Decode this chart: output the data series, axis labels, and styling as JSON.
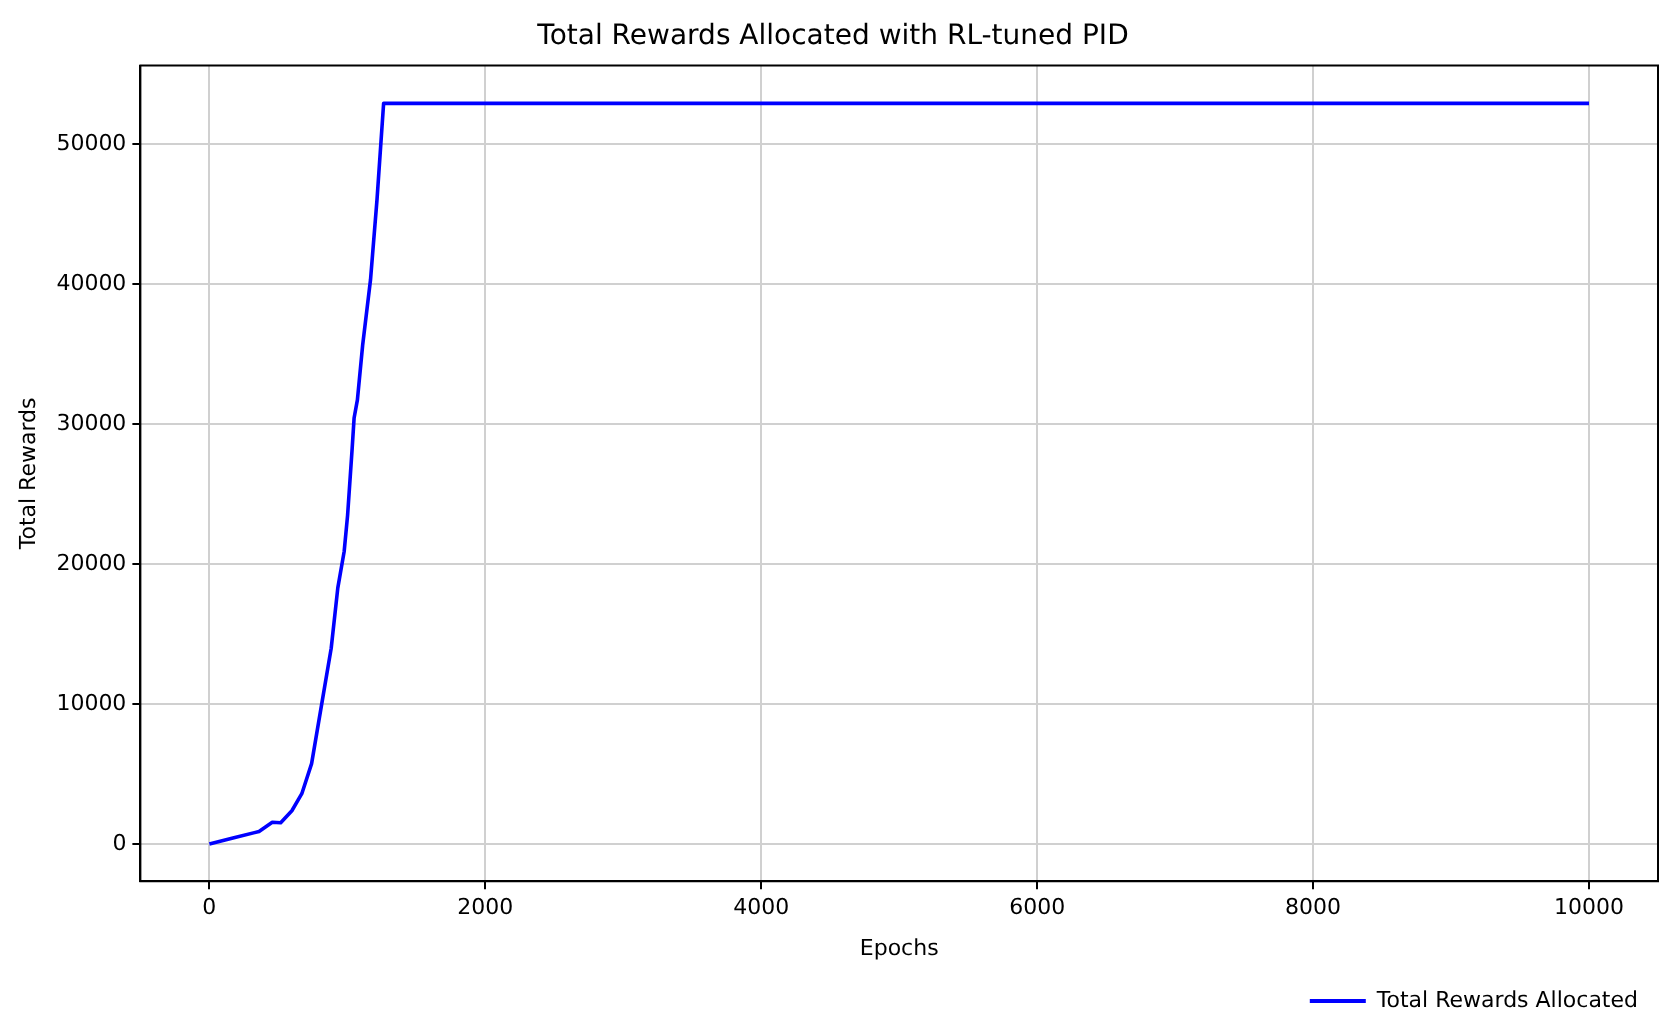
{
  "chart_data": {
    "type": "line",
    "title": "Total Rewards Allocated with RL-tuned PID",
    "xlabel": "Epochs",
    "ylabel": "Total Rewards",
    "series": [
      {
        "name": "Total Rewards Allocated",
        "color": "#0000ff",
        "x": [
          0,
          171,
          360,
          456,
          517,
          598,
          670,
          741,
          812,
          883,
          931,
          977,
          1002,
          1035,
          1049,
          1073,
          1111,
          1168,
          1215,
          1263,
          10000
        ],
        "values": [
          0,
          430,
          900,
          1560,
          1520,
          2380,
          3600,
          5750,
          9870,
          13990,
          18300,
          20900,
          23500,
          28270,
          30430,
          31730,
          35630,
          40300,
          46020,
          52900,
          52900
        ]
      }
    ],
    "xlim": [
      -500,
      10500
    ],
    "xticks": [
      0,
      2000,
      4000,
      6000,
      8000,
      10000
    ],
    "ylim": [
      -2650,
      55600
    ],
    "yticks": [
      0,
      10000,
      20000,
      30000,
      40000,
      50000
    ],
    "grid": true,
    "legend": "lower right",
    "marker": "none",
    "line_style": "solid"
  }
}
